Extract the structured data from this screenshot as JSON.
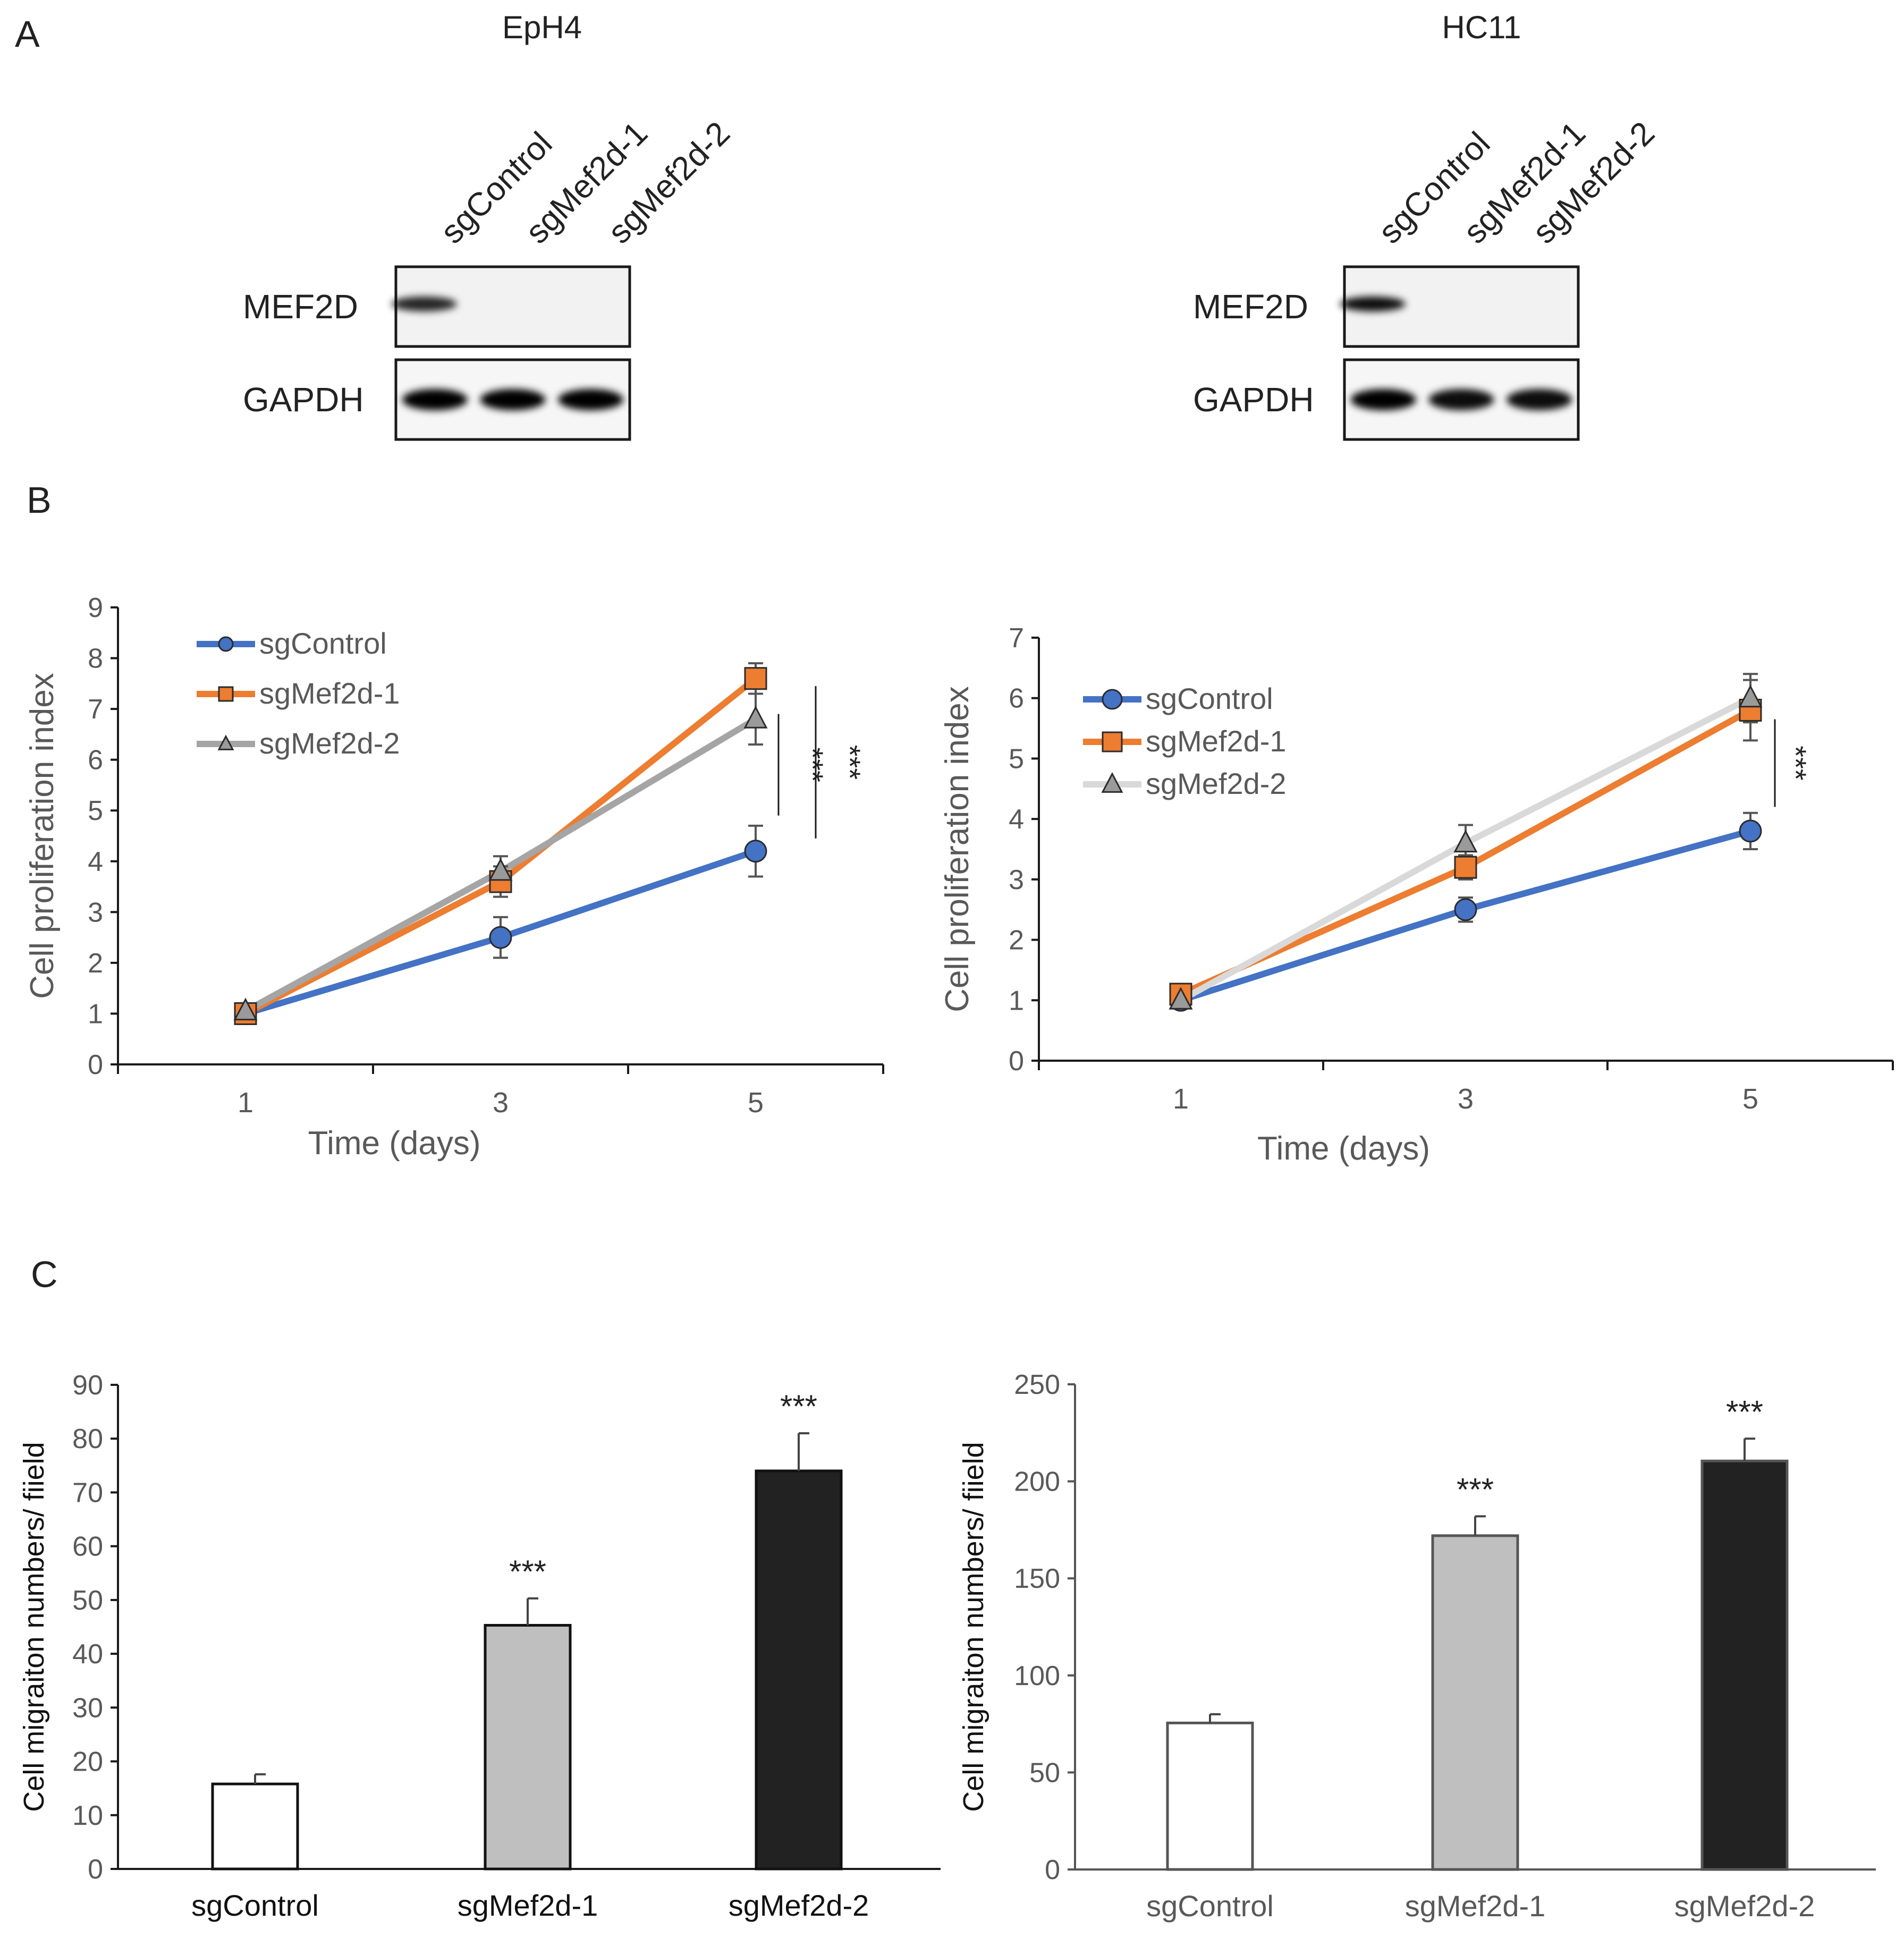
{
  "panels": {
    "a": "A",
    "b": "B",
    "c": "C"
  },
  "blots": [
    {
      "cell_line": "EpH4",
      "lanes": [
        "sgControl",
        "sgMef2d-1",
        "sgMef2d-2"
      ],
      "rows": [
        {
          "label": "MEF2D",
          "band_intensity": [
            0.85,
            0.0,
            0.0
          ]
        },
        {
          "label": "GAPDH",
          "band_intensity": [
            1.0,
            1.0,
            1.0
          ]
        }
      ]
    },
    {
      "cell_line": "HC11",
      "lanes": [
        "sgControl",
        "sgMef2d-1",
        "sgMef2d-2"
      ],
      "rows": [
        {
          "label": "MEF2D",
          "band_intensity": [
            0.95,
            0.0,
            0.0
          ]
        },
        {
          "label": "GAPDH",
          "band_intensity": [
            1.0,
            0.95,
            0.95
          ]
        }
      ]
    }
  ],
  "chart_data": [
    {
      "type": "line",
      "panel": "B",
      "cell_line": "EpH4",
      "x": [
        1,
        3,
        5
      ],
      "xlabel": "Time (days)",
      "ylabel": "Cell proliferation index",
      "ylim": [
        0,
        9
      ],
      "yticks": [
        0,
        1,
        2,
        3,
        4,
        5,
        6,
        7,
        8,
        9
      ],
      "series": [
        {
          "name": "sgControl",
          "color": "#4472C4",
          "marker": "circle",
          "values": [
            1.0,
            2.5,
            4.2
          ],
          "errors": [
            0.05,
            0.4,
            0.5
          ]
        },
        {
          "name": "sgMef2d-1",
          "color": "#ED7D31",
          "marker": "square",
          "values": [
            1.0,
            3.6,
            7.6
          ],
          "errors": [
            0.05,
            0.3,
            0.3
          ]
        },
        {
          "name": "sgMef2d-2",
          "color": "#A5A5A5",
          "marker": "triangle",
          "values": [
            1.05,
            3.8,
            6.8
          ],
          "errors": [
            0.05,
            0.3,
            0.5
          ]
        }
      ],
      "significance": [
        "***",
        "***"
      ]
    },
    {
      "type": "line",
      "panel": "B",
      "cell_line": "HC11",
      "x": [
        1,
        3,
        5
      ],
      "xlabel": "Time (days)",
      "ylabel": "Cell proliferation index",
      "ylim": [
        0,
        7
      ],
      "yticks": [
        0,
        1,
        2,
        3,
        4,
        5,
        6,
        7
      ],
      "series": [
        {
          "name": "sgControl",
          "color": "#4472C4",
          "marker": "circle",
          "values": [
            1.0,
            2.5,
            3.8
          ],
          "errors": [
            0.05,
            0.2,
            0.3
          ]
        },
        {
          "name": "sgMef2d-1",
          "color": "#ED7D31",
          "marker": "square",
          "values": [
            1.1,
            3.2,
            5.8
          ],
          "errors": [
            0.05,
            0.2,
            0.5
          ]
        },
        {
          "name": "sgMef2d-2",
          "color": "#D9D9D9",
          "marker": "triangle",
          "values": [
            1.0,
            3.6,
            6.0
          ],
          "errors": [
            0.05,
            0.3,
            0.4
          ]
        }
      ],
      "significance": [
        "***"
      ]
    },
    {
      "type": "bar",
      "panel": "C",
      "cell_line": "EpH4",
      "categories": [
        "sgControl",
        "sgMef2d-1",
        "sgMef2d-2"
      ],
      "values": [
        15.8,
        45.3,
        74.0
      ],
      "errors": [
        1.8,
        5.0,
        7.0
      ],
      "fills": [
        "#FFFFFF",
        "#BFBFBF",
        "#222222"
      ],
      "significance": [
        "",
        "***",
        "***"
      ],
      "ylabel": "Cell migraiton numbers/ fiield",
      "ylim": [
        0,
        90
      ],
      "yticks": [
        0,
        10,
        20,
        30,
        40,
        50,
        60,
        70,
        80,
        90
      ]
    },
    {
      "type": "bar",
      "panel": "C",
      "cell_line": "HC11",
      "categories": [
        "sgControl",
        "sgMef2d-1",
        "sgMef2d-2"
      ],
      "values": [
        75.5,
        172.0,
        210.5
      ],
      "errors": [
        4.5,
        10.0,
        11.5
      ],
      "fills": [
        "#FFFFFF",
        "#BFBFBF",
        "#222222"
      ],
      "significance": [
        "",
        "***",
        "***"
      ],
      "ylabel": "Cell migraiton numbers/ fiield",
      "ylim": [
        0,
        250
      ],
      "yticks": [
        0,
        50,
        100,
        150,
        200,
        250
      ]
    }
  ]
}
